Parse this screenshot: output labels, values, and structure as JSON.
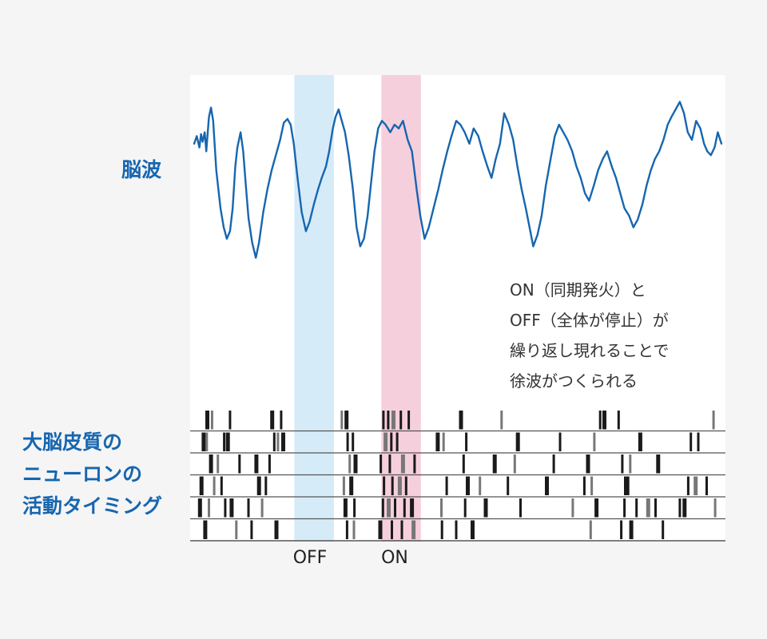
{
  "labels": {
    "eeg": "脳波",
    "neurons": [
      "大脳皮質の",
      "ニューロンの",
      "活動タイミング"
    ],
    "off": "OFF",
    "on": "ON"
  },
  "annotation": [
    "ON（同期発火）と",
    "OFF（全体が停止）が",
    "繰り返し現れることで",
    "徐波がつくられる"
  ],
  "colors": {
    "eeg_trace": "#1666b0",
    "label_text": "#1666b0",
    "off_band": "#d6ebf8",
    "on_band": "#f6cfdd",
    "spike": "#1a1a1a",
    "row_divider": "#555555"
  },
  "chart_data": {
    "type": "line",
    "title": "",
    "xlabel": "",
    "ylabel": "",
    "xlim": [
      0,
      100
    ],
    "ylim": [
      0,
      100
    ],
    "bands": [
      {
        "name": "OFF",
        "x0": 19.0,
        "x1": 26.5,
        "color": "#d6ebf8"
      },
      {
        "name": "ON",
        "x0": 35.5,
        "x1": 43.0,
        "color": "#f6cfdd"
      }
    ],
    "eeg": {
      "x": [
        0,
        0.5,
        1.0,
        1.3,
        1.6,
        2.0,
        2.3,
        2.8,
        3.2,
        3.6,
        4.2,
        5.0,
        5.6,
        6.2,
        6.8,
        7.3,
        7.8,
        8.2,
        8.8,
        9.3,
        9.8,
        10.3,
        11.0,
        11.7,
        12.3,
        13.1,
        13.9,
        14.7,
        15.5,
        16.3,
        17.0,
        17.7,
        18.3,
        18.9,
        19.6,
        20.4,
        21.2,
        21.9,
        22.7,
        23.5,
        24.2,
        25.0,
        25.6,
        26.3,
        26.8,
        27.4,
        28.0,
        28.6,
        29.3,
        30.1,
        30.8,
        31.5,
        32.2,
        32.9,
        33.5,
        34.2,
        34.9,
        35.6,
        36.3,
        37.2,
        38.0,
        38.8,
        39.6,
        40.5,
        41.3,
        42.2,
        42.9,
        43.7,
        44.5,
        45.4,
        46.3,
        47.1,
        48.0,
        48.8,
        49.7,
        50.5,
        51.3,
        52.2,
        53.0,
        53.9,
        54.7,
        55.6,
        56.4,
        57.2,
        58.0,
        58.8,
        59.7,
        60.5,
        61.3,
        62.1,
        62.9,
        63.6,
        64.3,
        65.1,
        65.9,
        66.7,
        67.6,
        68.4,
        69.2,
        70.0,
        70.8,
        71.7,
        72.5,
        73.3,
        74.1,
        74.9,
        75.8,
        76.6,
        77.5,
        78.3,
        79.2,
        80.0,
        80.8,
        81.6,
        82.5,
        83.3,
        84.1,
        85.0,
        85.8,
        86.6,
        87.4,
        88.2,
        89.0,
        89.8,
        90.5,
        91.3,
        92.1,
        92.9,
        93.6,
        94.4,
        95.2,
        96.0,
        96.7,
        97.3,
        98.0,
        98.7,
        99.3,
        100
      ],
      "y": [
        74,
        78,
        72,
        79,
        75,
        80,
        70,
        88,
        93,
        86,
        60,
        40,
        30,
        24,
        28,
        40,
        62,
        72,
        80,
        70,
        52,
        35,
        22,
        14,
        22,
        38,
        50,
        60,
        68,
        76,
        85,
        87,
        84,
        74,
        56,
        38,
        28,
        33,
        42,
        50,
        56,
        62,
        70,
        82,
        88,
        92,
        86,
        80,
        68,
        50,
        30,
        20,
        24,
        36,
        52,
        70,
        82,
        86,
        84,
        80,
        84,
        82,
        86,
        76,
        70,
        50,
        36,
        24,
        30,
        40,
        50,
        60,
        70,
        78,
        86,
        84,
        80,
        74,
        82,
        78,
        70,
        62,
        56,
        66,
        74,
        90,
        84,
        76,
        62,
        50,
        40,
        30,
        20,
        26,
        36,
        52,
        66,
        78,
        84,
        80,
        76,
        70,
        62,
        56,
        48,
        44,
        52,
        60,
        66,
        70,
        62,
        56,
        48,
        40,
        36,
        30,
        34,
        42,
        52,
        60,
        66,
        70,
        76,
        84,
        88,
        92,
        96,
        90,
        80,
        76,
        86,
        82,
        74,
        70,
        68,
        72,
        80,
        74
      ],
      "color": "#1666b0"
    },
    "raster": {
      "rows": 6,
      "spikes": [
        [
          2.5,
          3.4,
          6.8,
          14.8,
          16.5,
          28.0,
          28.9,
          35.9,
          36.8,
          37.8,
          39.2,
          40.7,
          50.6,
          58.3,
          77.0,
          77.8,
          80.5,
          98.5
        ],
        [
          1.8,
          2.4,
          5.7,
          6.4,
          15.2,
          15.9,
          16.9,
          29.1,
          30.1,
          36.3,
          37.4,
          38.5,
          46.2,
          47.3,
          51.6,
          61.4,
          69.4,
          75.9,
          84.6,
          94.2,
          95.6
        ],
        [
          3.2,
          4.5,
          8.6,
          11.8,
          14.3,
          29.5,
          30.6,
          35.4,
          37.1,
          39.6,
          41.8,
          51.1,
          57.0,
          60.8,
          68.2,
          74.7,
          81.2,
          82.7,
          88.0
        ],
        [
          1.4,
          3.8,
          5.2,
          12.3,
          13.6,
          28.4,
          29.8,
          36.0,
          37.6,
          39.0,
          40.2,
          47.9,
          51.9,
          54.2,
          59.5,
          66.9,
          74.0,
          75.4,
          81.9,
          82.3,
          93.7,
          95.1,
          97.2
        ],
        [
          1.1,
          2.8,
          5.9,
          7.1,
          10.3,
          12.9,
          28.7,
          30.4,
          35.8,
          36.9,
          38.1,
          39.9,
          41.3,
          46.9,
          51.4,
          55.3,
          61.9,
          71.8,
          76.3,
          81.6,
          83.9,
          86.1,
          87.5,
          92.1,
          93.0,
          98.8
        ],
        [
          2.1,
          8.0,
          10.9,
          15.6,
          29.0,
          30.3,
          35.3,
          37.5,
          39.4,
          41.6,
          47.0,
          49.7,
          52.8,
          75.2,
          81.0,
          82.9,
          88.9
        ]
      ]
    }
  }
}
